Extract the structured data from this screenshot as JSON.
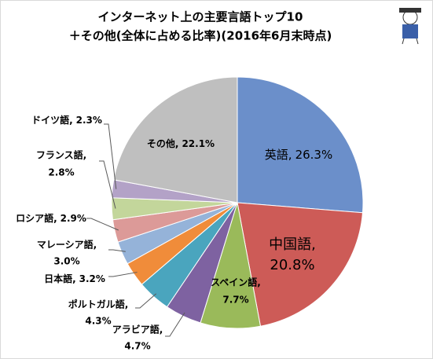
{
  "chart_data": {
    "type": "pie",
    "title": "インターネット上の主要言語トップ10",
    "subtitle": "＋その他(全体に占める比率)(2016年6月末時点)",
    "categories": [
      "英語,",
      "中国語,",
      "スペイン語,",
      "アラビア語,",
      "ポルトガル語,",
      "日本語,",
      "マレーシア語,",
      "ロシア語,",
      "フランス語,",
      "ドイツ語,",
      "その他,"
    ],
    "values": [
      26.3,
      20.8,
      7.7,
      4.7,
      4.3,
      3.2,
      3.0,
      2.9,
      2.8,
      2.3,
      22.1
    ],
    "value_labels": [
      "26.3%",
      "20.8%",
      "7.7%",
      "4.7%",
      "4.3%",
      "3.2%",
      "3.0%",
      "2.9%",
      "2.8%",
      "2.3%",
      "22.1%"
    ],
    "colors": [
      "#6b8fca",
      "#cd5b57",
      "#9aba5a",
      "#7e62a1",
      "#4aa5be",
      "#f08c3a",
      "#95b3d9",
      "#dc9a98",
      "#c3d69b",
      "#b3a2c7",
      "#bfbfbf"
    ]
  }
}
